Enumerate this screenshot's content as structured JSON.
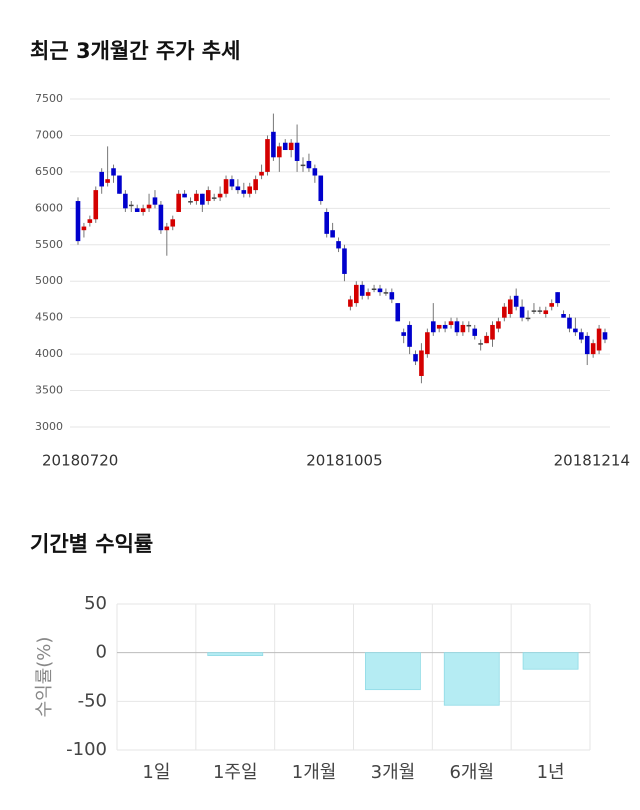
{
  "chart_data": [
    {
      "type": "candlestick",
      "title": "최근 3개월간 주가 추세",
      "categories": [
        "20180720",
        null,
        null,
        null,
        null,
        null,
        null,
        null,
        null,
        null,
        null,
        null,
        null,
        null,
        null,
        null,
        null,
        null,
        null,
        null,
        null,
        null,
        null,
        null,
        null,
        null,
        null,
        null,
        null,
        null,
        null,
        null,
        null,
        null,
        null,
        null,
        null,
        null,
        null,
        null,
        null,
        null,
        null,
        null,
        null,
        "20181005",
        null,
        null,
        null,
        null,
        null,
        null,
        null,
        null,
        null,
        null,
        null,
        null,
        null,
        null,
        null,
        null,
        null,
        null,
        null,
        null,
        null,
        null,
        null,
        null,
        null,
        null,
        null,
        null,
        null,
        null,
        null,
        null,
        null,
        null,
        null,
        null,
        null,
        null,
        null,
        null,
        null,
        null,
        null,
        "20181214"
      ],
      "open": [
        6100,
        5700,
        5800,
        5850,
        6500,
        6350,
        6550,
        6450,
        6200,
        6050,
        6000,
        5950,
        6000,
        6150,
        6050,
        5700,
        5750,
        5950,
        6200,
        6100,
        6100,
        6200,
        6100,
        6150,
        6150,
        6200,
        6400,
        6300,
        6250,
        6200,
        6250,
        6450,
        6500,
        7050,
        6700,
        6900,
        6800,
        6900,
        6600,
        6650,
        6550,
        6450,
        5950,
        5700,
        5550,
        5450,
        4650,
        4700,
        4950,
        4800,
        4900,
        4900,
        4850,
        4850,
        4700,
        4300,
        4400,
        4000,
        3700,
        4000,
        4450,
        4350,
        4400,
        4400,
        4450,
        4300,
        4400,
        4350,
        4150,
        4150,
        4200,
        4350,
        4500,
        4550,
        4800,
        4650,
        4500,
        4600,
        4600,
        4550,
        4650,
        4850,
        4550,
        4500,
        4350,
        4300,
        4250,
        4000,
        4050,
        4300
      ],
      "high": [
        6150,
        5800,
        5900,
        6300,
        6550,
        6850,
        6600,
        6450,
        6250,
        6100,
        6050,
        6050,
        6200,
        6250,
        6100,
        5800,
        5900,
        6250,
        6250,
        6150,
        6250,
        6200,
        6300,
        6200,
        6300,
        6450,
        6450,
        6400,
        6350,
        6350,
        6450,
        6600,
        7000,
        7300,
        6900,
        6950,
        6950,
        7150,
        6700,
        6750,
        6600,
        6450,
        6000,
        5800,
        5600,
        5500,
        4800,
        5000,
        5000,
        4900,
        4950,
        4950,
        4900,
        4900,
        4700,
        4350,
        4450,
        4050,
        4150,
        4350,
        4700,
        4400,
        4450,
        4500,
        4500,
        4450,
        4450,
        4400,
        4200,
        4300,
        4450,
        4500,
        4700,
        4800,
        4900,
        4750,
        4600,
        4700,
        4650,
        4650,
        4750,
        4850,
        4600,
        4550,
        4500,
        4350,
        4300,
        4200,
        4400,
        4350
      ],
      "low": [
        5500,
        5600,
        5750,
        5800,
        6200,
        6300,
        6350,
        6200,
        5950,
        5950,
        5950,
        5900,
        5950,
        6000,
        5650,
        5350,
        5700,
        5950,
        6150,
        6050,
        6050,
        5950,
        6050,
        6100,
        6100,
        6150,
        6250,
        6200,
        6150,
        6150,
        6200,
        6400,
        6450,
        6650,
        6500,
        6800,
        6700,
        6500,
        6500,
        6500,
        6350,
        6050,
        5600,
        5600,
        5400,
        5000,
        4600,
        4650,
        4750,
        4750,
        4850,
        4800,
        4800,
        4700,
        4450,
        4150,
        4000,
        3850,
        3600,
        3950,
        4250,
        4300,
        4300,
        4350,
        4250,
        4250,
        4300,
        4200,
        4050,
        4150,
        4100,
        4300,
        4450,
        4500,
        4600,
        4450,
        4450,
        4550,
        4550,
        4500,
        4600,
        4650,
        4500,
        4300,
        4250,
        4150,
        3850,
        3950,
        4000,
        4150
      ],
      "close": [
        5550,
        5750,
        5850,
        6250,
        6300,
        6400,
        6450,
        6200,
        6000,
        6050,
        5950,
        6000,
        6050,
        6050,
        5700,
        5750,
        5850,
        6200,
        6150,
        6100,
        6200,
        6050,
        6250,
        6150,
        6200,
        6400,
        6300,
        6250,
        6200,
        6300,
        6400,
        6500,
        6950,
        6700,
        6850,
        6800,
        6900,
        6650,
        6600,
        6550,
        6450,
        6100,
        5650,
        5600,
        5450,
        5100,
        4750,
        4950,
        4800,
        4850,
        4900,
        4850,
        4850,
        4750,
        4450,
        4250,
        4100,
        3900,
        4050,
        4300,
        4300,
        4400,
        4350,
        4450,
        4300,
        4400,
        4400,
        4250,
        4150,
        4250,
        4400,
        4450,
        4650,
        4750,
        4650,
        4500,
        4500,
        4600,
        4600,
        4600,
        4700,
        4700,
        4500,
        4350,
        4300,
        4200,
        4000,
        4150,
        4350,
        4200
      ],
      "up_color": "#d40000",
      "down_color": "#0000cc",
      "ylim": [
        3000,
        7500
      ],
      "yticks": [
        3000,
        3500,
        4000,
        4500,
        5000,
        5500,
        6000,
        6500,
        7000,
        7500
      ],
      "grid": true
    },
    {
      "type": "bar",
      "title": "기간별 수익률",
      "ylabel": "수익률(%)",
      "categories": [
        "1일",
        "1주일",
        "1개월",
        "3개월",
        "6개월",
        "1년"
      ],
      "values": [
        0,
        -3,
        0,
        -38,
        -54,
        -17
      ],
      "color": "#b5ecf3",
      "ylim": [
        -100,
        50
      ],
      "yticks": [
        -100,
        -50,
        0,
        50
      ],
      "grid": true
    }
  ]
}
